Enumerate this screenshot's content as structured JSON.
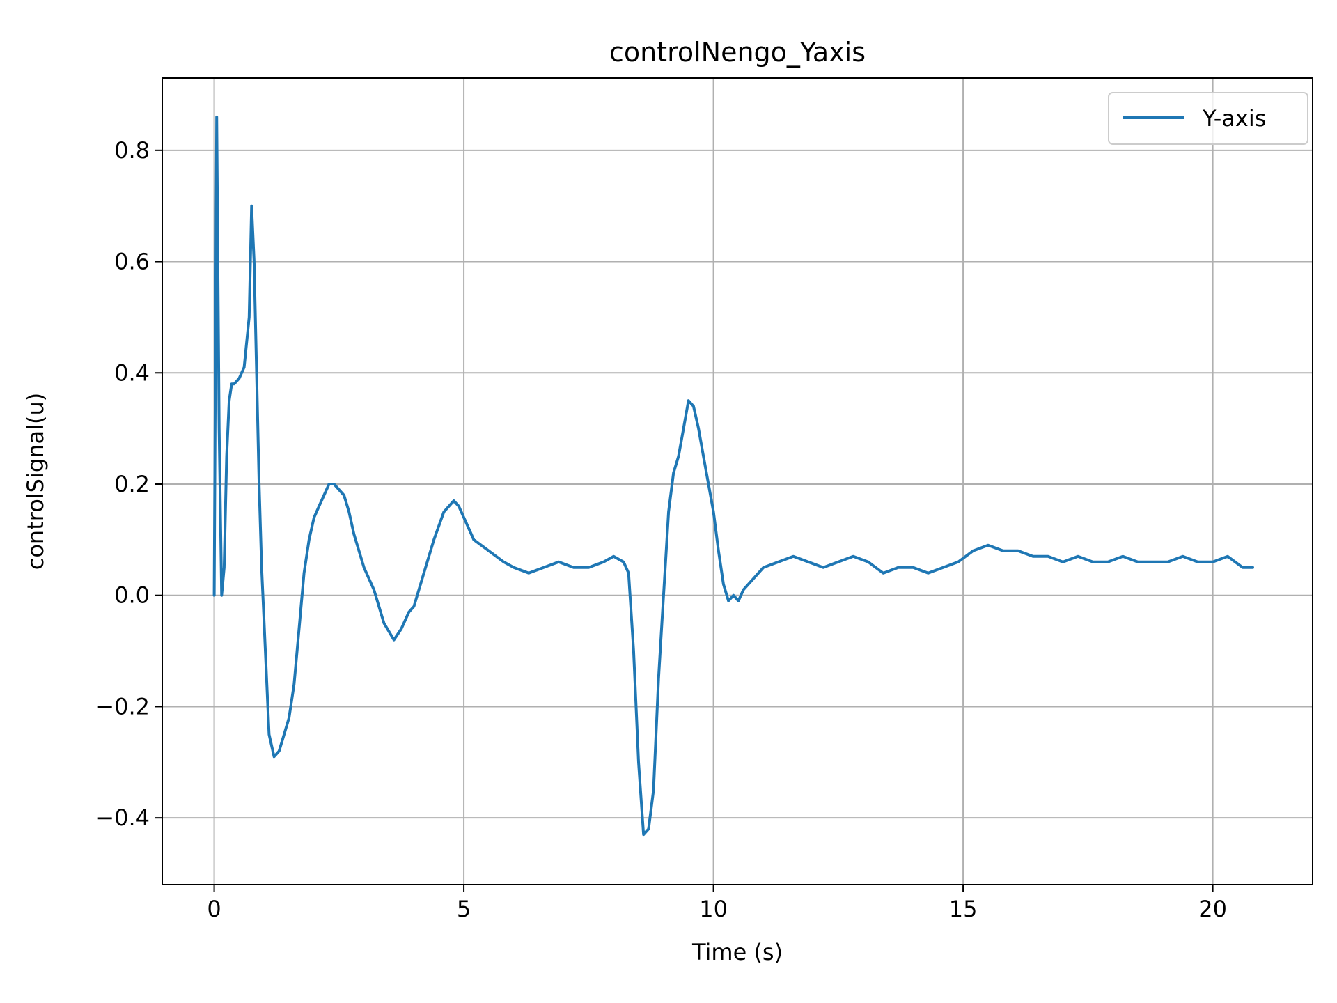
{
  "chart_data": {
    "type": "line",
    "title": "controlNengo_Yaxis",
    "xlabel": "Time (s)",
    "ylabel": "controlSignal(u)",
    "xlim": [
      -1.04,
      22.0
    ],
    "ylim": [
      -0.52,
      0.93
    ],
    "grid": true,
    "legend_position": "top-right",
    "x_ticks": [
      0,
      5,
      10,
      15,
      20
    ],
    "x_tick_labels": [
      "0",
      "5",
      "10",
      "15",
      "20"
    ],
    "y_ticks": [
      -0.4,
      -0.2,
      0.0,
      0.2,
      0.4,
      0.6,
      0.8
    ],
    "y_tick_labels": [
      "−0.4",
      "−0.2",
      "0.0",
      "0.2",
      "0.4",
      "0.6",
      "0.8"
    ],
    "series": [
      {
        "name": "Y-axis",
        "color": "#1f77b4",
        "x": [
          0,
          0.05,
          0.1,
          0.15,
          0.2,
          0.25,
          0.3,
          0.35,
          0.4,
          0.5,
          0.6,
          0.7,
          0.75,
          0.8,
          0.85,
          0.9,
          0.95,
          1.0,
          1.1,
          1.2,
          1.3,
          1.4,
          1.5,
          1.6,
          1.7,
          1.8,
          1.9,
          2.0,
          2.1,
          2.2,
          2.3,
          2.4,
          2.5,
          2.6,
          2.7,
          2.8,
          2.9,
          3.0,
          3.2,
          3.4,
          3.6,
          3.75,
          3.9,
          4.0,
          4.2,
          4.4,
          4.6,
          4.8,
          4.9,
          5.0,
          5.2,
          5.5,
          5.8,
          6.0,
          6.3,
          6.6,
          6.9,
          7.2,
          7.5,
          7.8,
          8.0,
          8.2,
          8.3,
          8.4,
          8.5,
          8.6,
          8.7,
          8.8,
          8.9,
          9.0,
          9.1,
          9.2,
          9.3,
          9.4,
          9.5,
          9.6,
          9.7,
          9.8,
          9.9,
          10.0,
          10.1,
          10.2,
          10.3,
          10.4,
          10.5,
          10.6,
          10.7,
          10.8,
          11.0,
          11.3,
          11.6,
          11.9,
          12.2,
          12.5,
          12.8,
          13.1,
          13.4,
          13.7,
          14.0,
          14.3,
          14.6,
          14.9,
          15.2,
          15.5,
          15.8,
          16.1,
          16.4,
          16.7,
          17.0,
          17.3,
          17.6,
          17.9,
          18.2,
          18.5,
          18.8,
          19.1,
          19.4,
          19.7,
          20.0,
          20.3,
          20.6,
          20.8
        ],
        "values": [
          0.0,
          0.86,
          0.3,
          0.0,
          0.05,
          0.25,
          0.35,
          0.38,
          0.38,
          0.39,
          0.41,
          0.5,
          0.7,
          0.6,
          0.4,
          0.2,
          0.05,
          -0.05,
          -0.25,
          -0.29,
          -0.28,
          -0.25,
          -0.22,
          -0.16,
          -0.06,
          0.04,
          0.1,
          0.14,
          0.16,
          0.18,
          0.2,
          0.2,
          0.19,
          0.18,
          0.15,
          0.11,
          0.08,
          0.05,
          0.01,
          -0.05,
          -0.08,
          -0.06,
          -0.03,
          -0.02,
          0.04,
          0.1,
          0.15,
          0.17,
          0.16,
          0.14,
          0.1,
          0.08,
          0.06,
          0.05,
          0.04,
          0.05,
          0.06,
          0.05,
          0.05,
          0.06,
          0.07,
          0.06,
          0.04,
          -0.1,
          -0.3,
          -0.43,
          -0.42,
          -0.35,
          -0.15,
          0.0,
          0.15,
          0.22,
          0.25,
          0.3,
          0.35,
          0.34,
          0.3,
          0.25,
          0.2,
          0.15,
          0.08,
          0.02,
          -0.01,
          0.0,
          -0.01,
          0.01,
          0.02,
          0.03,
          0.05,
          0.06,
          0.07,
          0.06,
          0.05,
          0.06,
          0.07,
          0.06,
          0.04,
          0.05,
          0.05,
          0.04,
          0.05,
          0.06,
          0.08,
          0.09,
          0.08,
          0.08,
          0.07,
          0.07,
          0.06,
          0.07,
          0.06,
          0.06,
          0.07,
          0.06,
          0.06,
          0.06,
          0.07,
          0.06,
          0.06,
          0.07,
          0.05,
          0.05
        ]
      }
    ]
  }
}
